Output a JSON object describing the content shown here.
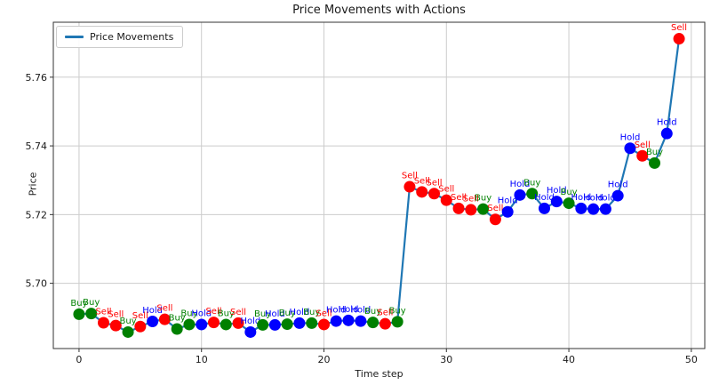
{
  "figure": {
    "title": "Price Movements with Actions",
    "xlabel": "Time step",
    "ylabel": "Price",
    "legend_label": "Price Movements"
  },
  "chart_data": {
    "type": "line",
    "title": "Price Movements with Actions",
    "xlabel": "Time step",
    "ylabel": "Price",
    "legend": [
      "Price Movements"
    ],
    "legend_position": "upper left",
    "grid": true,
    "xlim": [
      -2.1,
      51.1
    ],
    "ylim": [
      5.681,
      5.776
    ],
    "xticks": [
      0,
      10,
      20,
      30,
      40,
      50
    ],
    "yticks": [
      5.7,
      5.72,
      5.74,
      5.76
    ],
    "line_color": "#1f77b4",
    "grid_color": "#cccccc",
    "spine_color": "#333333",
    "action_colors": {
      "Buy": "#008000",
      "Sell": "#ff0000",
      "Hold": "#0000ff"
    },
    "x": [
      0,
      1,
      2,
      3,
      4,
      5,
      6,
      7,
      8,
      9,
      10,
      11,
      12,
      13,
      14,
      15,
      16,
      17,
      18,
      19,
      20,
      21,
      22,
      23,
      24,
      25,
      26,
      27,
      28,
      29,
      30,
      31,
      32,
      33,
      34,
      35,
      36,
      37,
      38,
      39,
      40,
      41,
      42,
      43,
      44,
      45,
      46,
      47,
      48,
      49
    ],
    "prices": [
      5.691,
      5.6912,
      5.6885,
      5.6877,
      5.6858,
      5.6874,
      5.6889,
      5.6895,
      5.6867,
      5.688,
      5.688,
      5.6886,
      5.688,
      5.6884,
      5.6858,
      5.6879,
      5.6879,
      5.6881,
      5.6884,
      5.6884,
      5.688,
      5.689,
      5.6892,
      5.689,
      5.6886,
      5.6882,
      5.6888,
      5.7281,
      5.7266,
      5.7261,
      5.7242,
      5.7218,
      5.7214,
      5.7216,
      5.7186,
      5.7208,
      5.7257,
      5.7261,
      5.7218,
      5.7238,
      5.7233,
      5.7218,
      5.7216,
      5.7216,
      5.7255,
      5.7393,
      5.7371,
      5.735,
      5.7436,
      5.7712
    ],
    "actions": [
      "Buy",
      "Buy",
      "Sell",
      "Sell",
      "Buy",
      "Sell",
      "Hold",
      "Sell",
      "Buy",
      "Buy",
      "Hold",
      "Sell",
      "Buy",
      "Sell",
      "Hold",
      "Buy",
      "Hold",
      "Buy",
      "Hold",
      "Buy",
      "Sell",
      "Hold",
      "Hold",
      "Hold",
      "Buy",
      "Sell",
      "Buy",
      "Sell",
      "Sell",
      "Sell",
      "Sell",
      "Sell",
      "Sell",
      "Buy",
      "Sell",
      "Hold",
      "Hold",
      "Buy",
      "Hold",
      "Hold",
      "Buy",
      "Hold",
      "Hold",
      "Hold",
      "Hold",
      "Hold",
      "Sell",
      "Buy",
      "Hold",
      "Sell"
    ]
  }
}
